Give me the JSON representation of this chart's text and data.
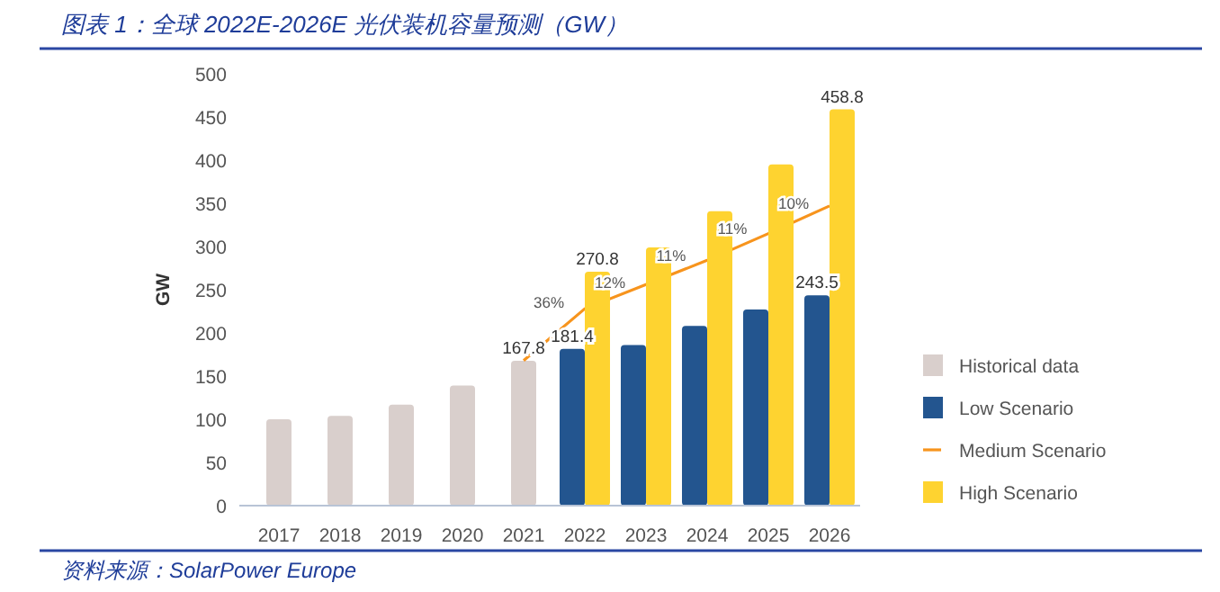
{
  "chart_data": {
    "type": "bar",
    "title": "图表 1：全球 2022E-2026E 光伏装机容量预测（GW）",
    "ylabel": "GW",
    "categories": [
      "2017",
      "2018",
      "2019",
      "2020",
      "2021",
      "2022",
      "2023",
      "2024",
      "2025",
      "2026"
    ],
    "series": [
      {
        "name": "Historical data",
        "color": "#d9cfcc",
        "values": [
          100,
          104,
          117,
          139,
          167.8,
          null,
          null,
          null,
          null,
          null
        ],
        "value_labels": [
          null,
          null,
          null,
          null,
          "167.8",
          null,
          null,
          null,
          null,
          null
        ]
      },
      {
        "name": "Low Scenario",
        "color": "#23558f",
        "values": [
          null,
          null,
          null,
          null,
          null,
          181.4,
          186,
          208,
          227,
          243.5
        ],
        "value_labels": [
          null,
          null,
          null,
          null,
          null,
          "181.4",
          null,
          null,
          null,
          "243.5"
        ]
      },
      {
        "name": "Medium Scenario",
        "type": "line",
        "color": "#f7941d",
        "values": [
          null,
          null,
          null,
          null,
          168,
          228,
          256,
          284,
          315,
          347
        ]
      },
      {
        "name": "High Scenario",
        "color": "#fed330",
        "values": [
          null,
          null,
          null,
          null,
          null,
          270.8,
          299,
          341,
          395,
          458.8
        ],
        "value_labels": [
          null,
          null,
          null,
          null,
          null,
          "270.8",
          null,
          null,
          null,
          "458.8"
        ]
      }
    ],
    "ylim": [
      0,
      500
    ],
    "yticks": [
      0,
      50,
      100,
      150,
      200,
      250,
      300,
      350,
      400,
      450,
      500
    ],
    "grid": false,
    "legend": "right",
    "marker": "none",
    "line_style": "solid",
    "annotations": [
      {
        "text": "36%",
        "x": "2022",
        "y": 235
      },
      {
        "text": "12%",
        "x": "2023",
        "y": 258
      },
      {
        "text": "11%",
        "x": "2024",
        "y": 290
      },
      {
        "text": "11%",
        "x": "2025",
        "y": 321
      },
      {
        "text": "10%",
        "x": "2026",
        "y": 350
      },
      "资料来源：SolarPower Europe"
    ]
  }
}
